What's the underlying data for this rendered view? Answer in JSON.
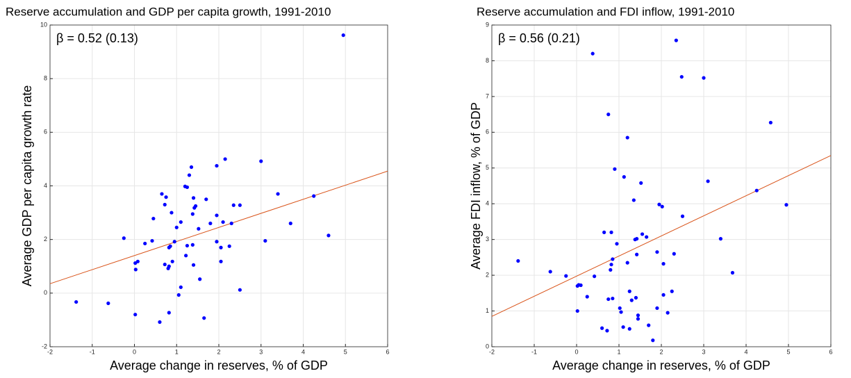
{
  "chart_data": [
    {
      "type": "scatter",
      "title": "Reserve accumulation and GDP per capita growth, 1991-2010",
      "xlabel": "Average change in reserves, % of GDP",
      "ylabel": "Average GDP per capita growth rate",
      "annotation": "β = 0.52 (0.13)",
      "xlim": [
        -2,
        6
      ],
      "xticks": [
        -2,
        -1,
        0,
        1,
        2,
        3,
        4,
        5,
        6
      ],
      "ylim": [
        -2,
        10
      ],
      "yticks": [
        -2,
        0,
        2,
        4,
        6,
        8,
        10
      ],
      "grid": true,
      "series": [
        {
          "color": "#0000ff",
          "x": [
            -1.38,
            -0.62,
            -0.25,
            0.02,
            0.03,
            0.08,
            0.02,
            0.25,
            0.42,
            0.45,
            0.65,
            0.72,
            0.75,
            0.72,
            0.8,
            0.82,
            0.82,
            0.85,
            0.88,
            0.9,
            0.95,
            0.6,
            0.82,
            1.0,
            1.1,
            1.05,
            1.1,
            1.2,
            1.22,
            1.25,
            1.25,
            1.3,
            1.35,
            1.38,
            1.4,
            1.38,
            1.4,
            1.42,
            1.45,
            1.52,
            1.55,
            1.65,
            1.7,
            1.8,
            1.95,
            1.95,
            1.95,
            2.05,
            2.05,
            2.1,
            2.15,
            2.25,
            2.3,
            2.35,
            2.5,
            2.5,
            3.0,
            3.1,
            3.4,
            3.7,
            4.25,
            4.6,
            4.95
          ],
          "values": [
            -0.33,
            -0.38,
            2.05,
            1.12,
            0.88,
            1.18,
            -0.8,
            1.85,
            1.95,
            2.78,
            3.7,
            3.3,
            3.58,
            1.07,
            0.92,
            1.0,
            1.7,
            1.75,
            3.0,
            1.18,
            1.92,
            -1.08,
            -0.73,
            2.45,
            2.65,
            -0.07,
            0.22,
            3.98,
            1.4,
            1.77,
            3.95,
            4.4,
            4.7,
            2.95,
            3.55,
            1.8,
            1.05,
            3.18,
            3.25,
            2.4,
            0.52,
            -0.93,
            3.5,
            2.6,
            4.75,
            2.9,
            1.92,
            1.18,
            1.7,
            2.65,
            5.0,
            1.75,
            2.6,
            3.28,
            3.28,
            0.12,
            4.92,
            1.95,
            3.7,
            2.6,
            3.62,
            2.15,
            9.62
          ]
        }
      ],
      "fit_line": {
        "color": "#d95319",
        "x": [
          -2,
          6
        ],
        "y": [
          0.35,
          4.55
        ]
      }
    },
    {
      "type": "scatter",
      "title": "Reserve accumulation and FDI inflow, 1991-2010",
      "xlabel": "Average change in reserves, % of GDP",
      "ylabel": "Average FDI inflow, % of GDP",
      "annotation": "β = 0.56 (0.21)",
      "xlim": [
        -2,
        6
      ],
      "xticks": [
        -2,
        -1,
        0,
        1,
        2,
        3,
        4,
        5,
        6
      ],
      "ylim": [
        0,
        9
      ],
      "yticks": [
        0,
        1,
        2,
        3,
        4,
        5,
        6,
        7,
        8,
        9
      ],
      "grid": true,
      "series": [
        {
          "color": "#0000ff",
          "x": [
            -1.38,
            -0.62,
            -0.25,
            0.02,
            0.02,
            0.05,
            0.1,
            0.25,
            0.42,
            0.38,
            0.6,
            0.65,
            0.72,
            0.75,
            0.75,
            0.8,
            0.82,
            0.82,
            0.85,
            0.85,
            0.9,
            0.95,
            1.02,
            1.05,
            1.1,
            1.12,
            1.2,
            1.2,
            1.25,
            1.25,
            1.3,
            1.35,
            1.38,
            1.4,
            1.42,
            1.42,
            1.45,
            1.45,
            1.52,
            1.55,
            1.65,
            1.7,
            1.8,
            1.9,
            1.9,
            1.95,
            2.02,
            2.05,
            2.05,
            2.15,
            2.25,
            2.3,
            2.35,
            2.48,
            2.5,
            3.0,
            3.1,
            3.4,
            3.68,
            4.25,
            4.58,
            4.95
          ],
          "values": [
            2.4,
            2.1,
            1.98,
            1.0,
            1.7,
            1.73,
            1.72,
            1.4,
            1.97,
            8.2,
            0.52,
            3.2,
            0.45,
            6.5,
            1.33,
            2.15,
            3.2,
            2.3,
            2.45,
            1.35,
            4.97,
            2.88,
            1.08,
            0.97,
            0.55,
            4.75,
            5.85,
            2.35,
            0.5,
            1.55,
            1.3,
            4.1,
            3.0,
            1.37,
            3.02,
            2.58,
            0.78,
            0.88,
            4.58,
            3.15,
            3.07,
            0.6,
            0.18,
            1.08,
            2.65,
            3.98,
            3.92,
            2.32,
            1.45,
            0.95,
            1.55,
            2.6,
            8.57,
            7.55,
            3.65,
            7.52,
            4.63,
            3.02,
            2.07,
            4.37,
            6.27,
            3.97
          ]
        }
      ],
      "fit_line": {
        "color": "#d95319",
        "x": [
          -2,
          6
        ],
        "y": [
          0.85,
          5.35
        ]
      }
    }
  ]
}
